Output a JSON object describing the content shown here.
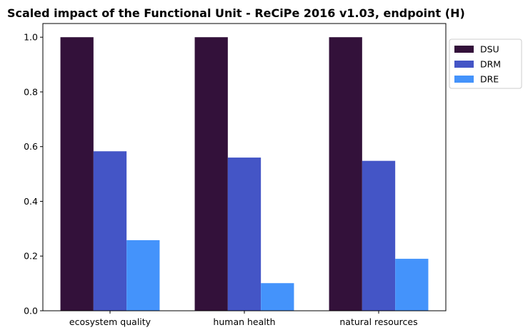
{
  "chart_data": {
    "type": "bar",
    "title": "Scaled impact of the Functional Unit - ReCiPe 2016 v1.03, endpoint (H)",
    "xlabel": "",
    "ylabel": "",
    "categories": [
      "ecosystem quality",
      "human health",
      "natural resources"
    ],
    "series": [
      {
        "name": "DSU",
        "color": "#33113a",
        "values": [
          1.0,
          1.0,
          1.0
        ]
      },
      {
        "name": "DRM",
        "color": "#4455c6",
        "values": [
          0.583,
          0.56,
          0.548
        ]
      },
      {
        "name": "DRE",
        "color": "#4493fb",
        "values": [
          0.258,
          0.101,
          0.19
        ]
      }
    ],
    "ylim": [
      0,
      1.05
    ],
    "yticks": [
      0.0,
      0.2,
      0.4,
      0.6,
      0.8,
      1.0
    ],
    "ytick_labels": [
      "0.0",
      "0.2",
      "0.4",
      "0.6",
      "0.8",
      "1.0"
    ],
    "grid": false,
    "legend_position": "outside-top-right"
  }
}
